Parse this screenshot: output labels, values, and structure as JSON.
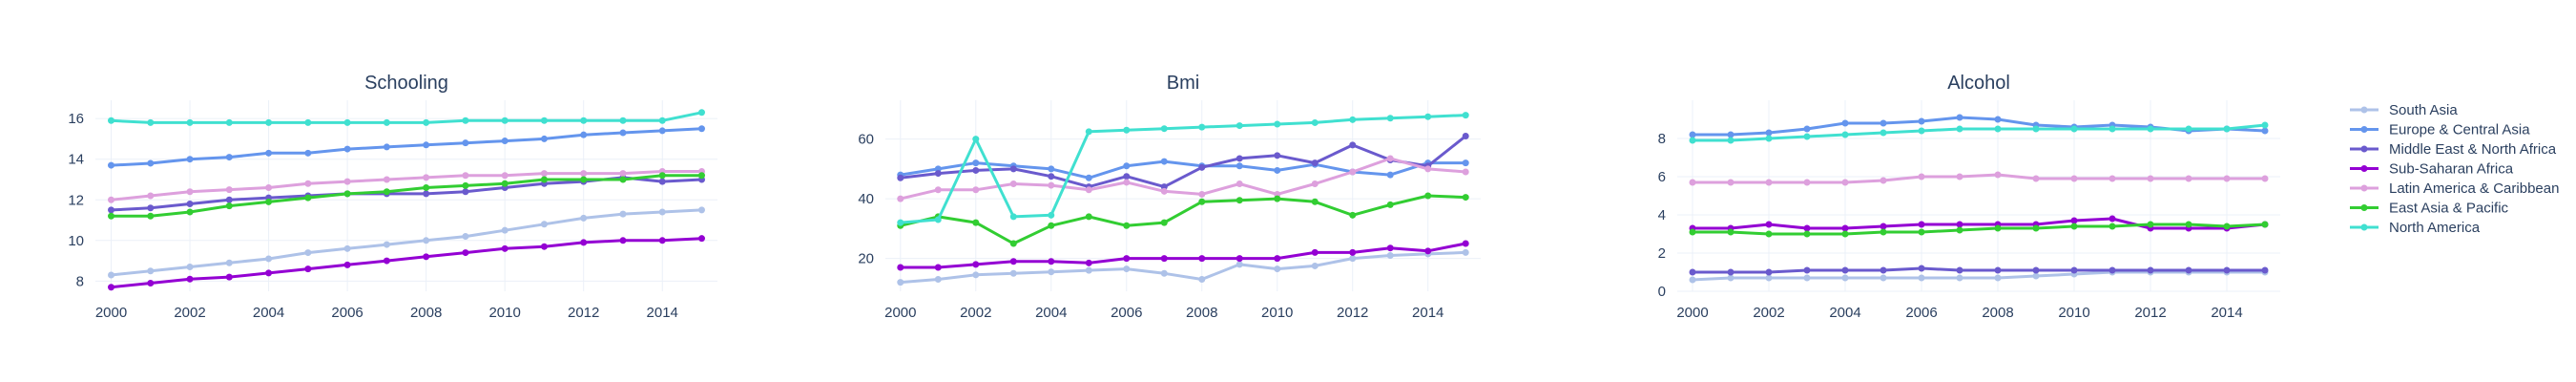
{
  "chart_data": [
    {
      "type": "line",
      "title": "Schooling",
      "xlabel": "",
      "ylabel": "",
      "x": [
        2000,
        2001,
        2002,
        2003,
        2004,
        2005,
        2006,
        2007,
        2008,
        2009,
        2010,
        2011,
        2012,
        2013,
        2014,
        2015
      ],
      "xticks": [
        2000,
        2002,
        2004,
        2006,
        2008,
        2010,
        2012,
        2014
      ],
      "xlim": [
        1999.6,
        2015.4
      ],
      "ylim": [
        7.5,
        16.9
      ],
      "yticks": [
        8,
        10,
        12,
        14,
        16
      ],
      "grid": true,
      "series": [
        {
          "name": "South Asia",
          "values": [
            8.3,
            8.5,
            8.7,
            8.9,
            9.1,
            9.4,
            9.6,
            9.8,
            10.0,
            10.2,
            10.5,
            10.8,
            11.1,
            11.3,
            11.4,
            11.5
          ]
        },
        {
          "name": "Europe & Central Asia",
          "values": [
            13.7,
            13.8,
            14.0,
            14.1,
            14.3,
            14.3,
            14.5,
            14.6,
            14.7,
            14.8,
            14.9,
            15.0,
            15.2,
            15.3,
            15.4,
            15.5
          ]
        },
        {
          "name": "Middle East & North Africa",
          "values": [
            11.5,
            11.6,
            11.8,
            12.0,
            12.1,
            12.2,
            12.3,
            12.3,
            12.3,
            12.4,
            12.6,
            12.8,
            12.9,
            13.1,
            12.9,
            13.0
          ]
        },
        {
          "name": "Sub-Saharan Africa",
          "values": [
            7.7,
            7.9,
            8.1,
            8.2,
            8.4,
            8.6,
            8.8,
            9.0,
            9.2,
            9.4,
            9.6,
            9.7,
            9.9,
            10.0,
            10.0,
            10.1
          ]
        },
        {
          "name": "Latin America & Caribbean",
          "values": [
            12.0,
            12.2,
            12.4,
            12.5,
            12.6,
            12.8,
            12.9,
            13.0,
            13.1,
            13.2,
            13.2,
            13.3,
            13.3,
            13.3,
            13.4,
            13.4
          ]
        },
        {
          "name": "East Asia & Pacific",
          "values": [
            11.2,
            11.2,
            11.4,
            11.7,
            11.9,
            12.1,
            12.3,
            12.4,
            12.6,
            12.7,
            12.8,
            13.0,
            13.0,
            13.0,
            13.2,
            13.2
          ]
        },
        {
          "name": "North America",
          "values": [
            15.9,
            15.8,
            15.8,
            15.8,
            15.8,
            15.8,
            15.8,
            15.8,
            15.8,
            15.9,
            15.9,
            15.9,
            15.9,
            15.9,
            15.9,
            16.3
          ]
        }
      ]
    },
    {
      "type": "line",
      "title": "Bmi",
      "xlabel": "",
      "ylabel": "",
      "x": [
        2000,
        2001,
        2002,
        2003,
        2004,
        2005,
        2006,
        2007,
        2008,
        2009,
        2010,
        2011,
        2012,
        2013,
        2014,
        2015
      ],
      "xticks": [
        2000,
        2002,
        2004,
        2006,
        2008,
        2010,
        2012,
        2014
      ],
      "xlim": [
        1999.6,
        2015.4
      ],
      "ylim": [
        9,
        73
      ],
      "yticks": [
        20,
        40,
        60
      ],
      "grid": true,
      "series": [
        {
          "name": "South Asia",
          "values": [
            12,
            13,
            14.5,
            15,
            15.5,
            16,
            16.5,
            15,
            13,
            18,
            16.5,
            17.5,
            20,
            21,
            21.5,
            22
          ]
        },
        {
          "name": "Europe & Central Asia",
          "values": [
            48,
            50,
            52,
            51,
            50,
            47,
            51,
            52.5,
            51,
            51,
            49.5,
            51.5,
            49,
            48,
            52,
            52
          ]
        },
        {
          "name": "Middle East & North Africa",
          "values": [
            47,
            48.5,
            49.5,
            50,
            47.5,
            44,
            47.5,
            44,
            50.5,
            53.5,
            54.5,
            52,
            58,
            53,
            51,
            61
          ]
        },
        {
          "name": "Sub-Saharan Africa",
          "values": [
            17,
            17,
            18,
            19,
            19,
            18.5,
            20,
            20,
            20,
            20,
            20,
            22,
            22,
            23.5,
            22.5,
            25
          ]
        },
        {
          "name": "Latin America & Caribbean",
          "values": [
            40,
            43,
            43,
            45,
            44.5,
            43,
            45.5,
            42.5,
            41.5,
            45,
            41.5,
            45,
            49,
            53.5,
            50,
            49
          ]
        },
        {
          "name": "East Asia & Pacific",
          "values": [
            31,
            34,
            32,
            25,
            31,
            34,
            31,
            32,
            39,
            39.5,
            40,
            39,
            34.5,
            38,
            41,
            40.5
          ]
        },
        {
          "name": "North America",
          "values": [
            32,
            33,
            60,
            34,
            34.5,
            62.5,
            63,
            63.5,
            64,
            64.5,
            65,
            65.5,
            66.5,
            67,
            67.5,
            68
          ]
        }
      ]
    },
    {
      "type": "line",
      "title": "Alcohol",
      "xlabel": "",
      "ylabel": "",
      "x": [
        2000,
        2001,
        2002,
        2003,
        2004,
        2005,
        2006,
        2007,
        2008,
        2009,
        2010,
        2011,
        2012,
        2013,
        2014,
        2015
      ],
      "xticks": [
        2000,
        2002,
        2004,
        2006,
        2008,
        2010,
        2012,
        2014
      ],
      "xlim": [
        1999.6,
        2015.4
      ],
      "ylim": [
        0,
        10
      ],
      "yticks": [
        0,
        2,
        4,
        6,
        8
      ],
      "grid": true,
      "series": [
        {
          "name": "South Asia",
          "values": [
            0.6,
            0.7,
            0.7,
            0.7,
            0.7,
            0.7,
            0.7,
            0.7,
            0.7,
            0.8,
            0.9,
            1.0,
            1.0,
            1.0,
            1.0,
            1.0
          ]
        },
        {
          "name": "Europe & Central Asia",
          "values": [
            8.2,
            8.2,
            8.3,
            8.5,
            8.8,
            8.8,
            8.9,
            9.1,
            9.0,
            8.7,
            8.6,
            8.7,
            8.6,
            8.4,
            8.5,
            8.4
          ]
        },
        {
          "name": "Middle East & North Africa",
          "values": [
            1.0,
            1.0,
            1.0,
            1.1,
            1.1,
            1.1,
            1.2,
            1.1,
            1.1,
            1.1,
            1.1,
            1.1,
            1.1,
            1.1,
            1.1,
            1.1
          ]
        },
        {
          "name": "Sub-Saharan Africa",
          "values": [
            3.3,
            3.3,
            3.5,
            3.3,
            3.3,
            3.4,
            3.5,
            3.5,
            3.5,
            3.5,
            3.7,
            3.8,
            3.3,
            3.3,
            3.3,
            3.5
          ]
        },
        {
          "name": "Latin America & Caribbean",
          "values": [
            5.7,
            5.7,
            5.7,
            5.7,
            5.7,
            5.8,
            6.0,
            6.0,
            6.1,
            5.9,
            5.9,
            5.9,
            5.9,
            5.9,
            5.9,
            5.9
          ]
        },
        {
          "name": "East Asia & Pacific",
          "values": [
            3.1,
            3.1,
            3.0,
            3.0,
            3.0,
            3.1,
            3.1,
            3.2,
            3.3,
            3.3,
            3.4,
            3.4,
            3.5,
            3.5,
            3.4,
            3.5
          ]
        },
        {
          "name": "North America",
          "values": [
            7.9,
            7.9,
            8.0,
            8.1,
            8.2,
            8.3,
            8.4,
            8.5,
            8.5,
            8.5,
            8.5,
            8.5,
            8.5,
            8.5,
            8.5,
            8.7
          ]
        }
      ]
    }
  ],
  "legend": {
    "placement": "right",
    "items": [
      {
        "name": "South Asia",
        "color": "#aec2e8"
      },
      {
        "name": "Europe & Central Asia",
        "color": "#6495ed"
      },
      {
        "name": "Middle East & North Africa",
        "color": "#6a5acd"
      },
      {
        "name": "Sub-Saharan Africa",
        "color": "#9400d3"
      },
      {
        "name": "Latin America & Caribbean",
        "color": "#dda0dd"
      },
      {
        "name": "East Asia & Pacific",
        "color": "#32cd32"
      },
      {
        "name": "North America",
        "color": "#40e0d0"
      }
    ]
  }
}
